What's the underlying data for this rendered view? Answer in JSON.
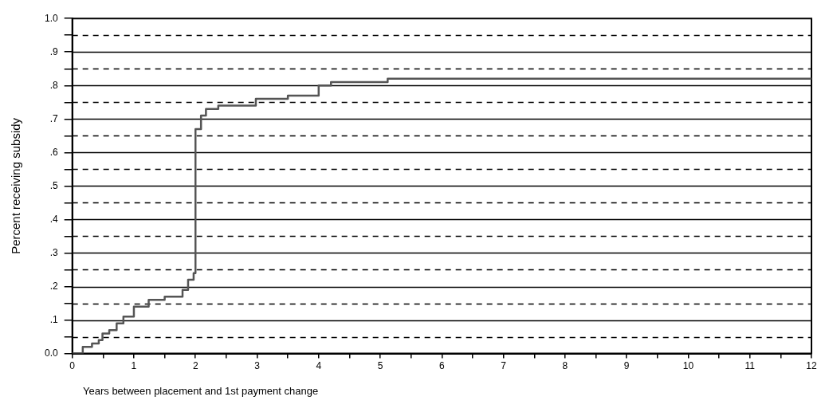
{
  "chart_data": {
    "type": "step",
    "xlabel": "Years between placement and 1st payment change",
    "ylabel": "Percent receiving subsidy",
    "series": [
      {
        "color": "#555555",
        "x": [
          0,
          0.17,
          0.32,
          0.43,
          0.49,
          0.6,
          0.72,
          0.83,
          1.0,
          1.24,
          1.5,
          1.79,
          1.88,
          1.97,
          2.0,
          2.09,
          2.17,
          2.37,
          2.98,
          3.5,
          4.0,
          4.2,
          5.12,
          5.38,
          5.96,
          12
        ],
        "values": [
          0,
          0.02,
          0.03,
          0.04,
          0.06,
          0.07,
          0.09,
          0.11,
          0.14,
          0.16,
          0.17,
          0.19,
          0.22,
          0.24,
          0.67,
          0.71,
          0.73,
          0.74,
          0.76,
          0.77,
          0.8,
          0.81,
          0.82,
          0.82,
          0.82,
          0.82
        ]
      }
    ],
    "xlim": [
      0,
      12
    ],
    "xticks": [
      0,
      {
        "value": 0.5,
        "label": null
      },
      1,
      {
        "value": 1.5,
        "label": null
      },
      2,
      {
        "value": 2.5,
        "label": null
      },
      3,
      {
        "value": 3.5,
        "label": null
      },
      4,
      {
        "value": 4.5,
        "label": null
      },
      5,
      {
        "value": 5.5,
        "label": null
      },
      6,
      {
        "value": 6.5,
        "label": null
      },
      7,
      {
        "value": 7.5,
        "label": null
      },
      8,
      {
        "value": 8.5,
        "label": null
      },
      9,
      {
        "value": 9.5,
        "label": null
      },
      10,
      {
        "value": 10.5,
        "label": null
      },
      11,
      {
        "value": 11.5,
        "label": null
      },
      12
    ],
    "ylim": [
      0,
      1
    ],
    "yticks": [
      {
        "value": 0,
        "label": "0.0"
      },
      {
        "value": 0.05,
        "label": null
      },
      {
        "value": 0.1,
        "label": ".1"
      },
      {
        "value": 0.15,
        "label": null
      },
      {
        "value": 0.2,
        "label": ".2"
      },
      {
        "value": 0.25,
        "label": null
      },
      {
        "value": 0.3,
        "label": ".3"
      },
      {
        "value": 0.35,
        "label": null
      },
      {
        "value": 0.4,
        "label": ".4"
      },
      {
        "value": 0.45,
        "label": null
      },
      {
        "value": 0.5,
        "label": ".5"
      },
      {
        "value": 0.55,
        "label": null
      },
      {
        "value": 0.6,
        "label": ".6"
      },
      {
        "value": 0.65,
        "label": null
      },
      {
        "value": 0.7,
        "label": ".7"
      },
      {
        "value": 0.75,
        "label": null
      },
      {
        "value": 0.8,
        "label": ".8"
      },
      {
        "value": 0.85,
        "label": null
      },
      {
        "value": 0.9,
        "label": ".9"
      },
      {
        "value": 0.95,
        "label": null
      },
      {
        "value": 1,
        "label": "1.0"
      }
    ],
    "grid": "y",
    "legend": false,
    "marker": "none",
    "line_style": "solid"
  }
}
